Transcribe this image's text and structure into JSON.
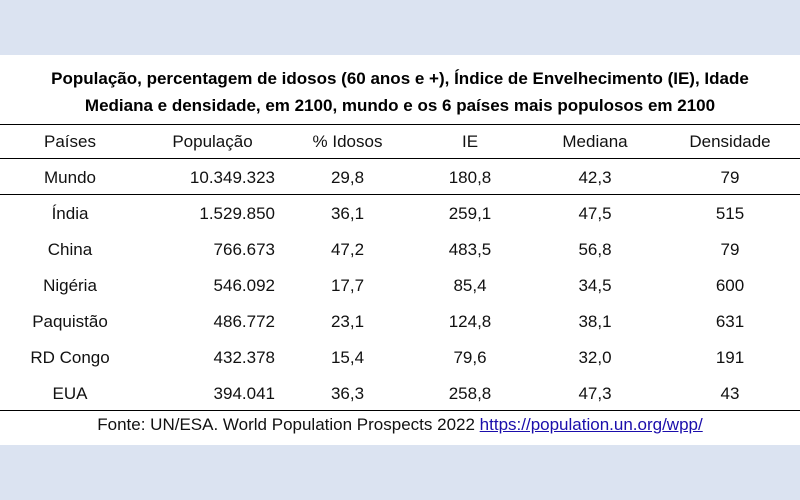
{
  "title_line1": "População, percentagem de idosos (60 anos e +), Índice de Envelhecimento (IE), Idade",
  "title_line2": "Mediana e densidade, em 2100, mundo e os 6 países mais populosos em 2100",
  "headers": [
    "Países",
    "População",
    "% Idosos",
    "IE",
    "Mediana",
    "Densidade"
  ],
  "rows": [
    [
      "Mundo",
      "10.349.323",
      "29,8",
      "180,8",
      "42,3",
      "79"
    ],
    [
      "Índia",
      "1.529.850",
      "36,1",
      "259,1",
      "47,5",
      "515"
    ],
    [
      "China",
      "766.673",
      "47,2",
      "483,5",
      "56,8",
      "79"
    ],
    [
      "Nigéria",
      "546.092",
      "17,7",
      "85,4",
      "34,5",
      "600"
    ],
    [
      "Paquistão",
      "486.772",
      "23,1",
      "124,8",
      "38,1",
      "631"
    ],
    [
      "RD Congo",
      "432.378",
      "15,4",
      "79,6",
      "32,0",
      "191"
    ],
    [
      "EUA",
      "394.041",
      "36,3",
      "258,8",
      "47,3",
      "43"
    ]
  ],
  "source_text": "Fonte: UN/ESA. World Population Prospects 2022",
  "source_link": "https://population.un.org/wpp/"
}
